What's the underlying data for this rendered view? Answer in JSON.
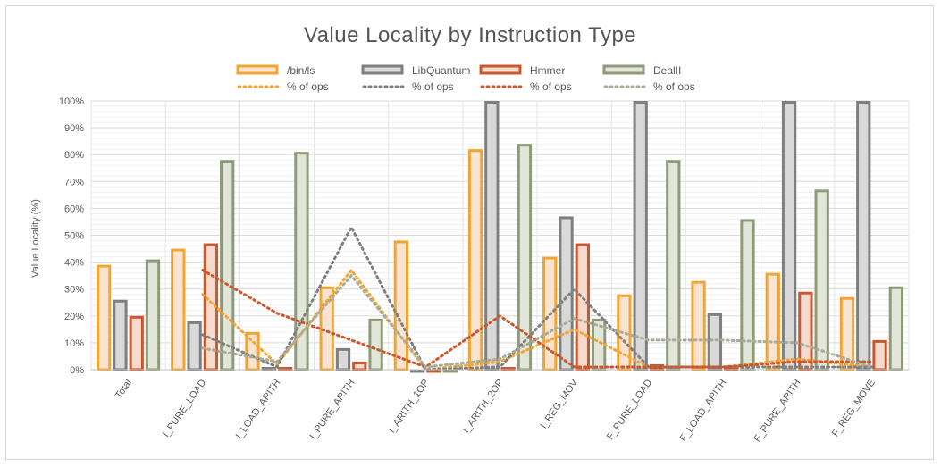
{
  "chart_data": {
    "type": "bar",
    "title": "Value Locality by Instruction Type",
    "ylabel": "Value Locality (%)",
    "xlabel": "",
    "ylim": [
      0,
      100
    ],
    "yticks": [
      "0%",
      "10%",
      "20%",
      "30%",
      "40%",
      "50%",
      "60%",
      "70%",
      "80%",
      "90%",
      "100%"
    ],
    "grid": true,
    "legend_position": "top",
    "categories": [
      "Total",
      "I_PURE_LOAD",
      "I_LOAD_ARITH",
      "I_PURE_ARITH",
      "I_ARITH_1OP",
      "I_ARITH_2OP",
      "I_REG_MOV",
      "F_PURE_LOAD",
      "F_LOAD_ARITH",
      "F_PURE_ARITH",
      "F_REG_MOVE"
    ],
    "series": [
      {
        "name": "/bin/ls",
        "stroke": "#f2a533",
        "fill": "#fbe4cf",
        "values": [
          39,
          45,
          14,
          31,
          48,
          82,
          42,
          28,
          33,
          36,
          27
        ]
      },
      {
        "name": "LibQuantum",
        "stroke": "#7f7f7f",
        "fill": "#d9d9d9",
        "values": [
          26,
          18,
          1,
          8,
          0,
          100,
          57,
          100,
          21,
          100,
          100
        ]
      },
      {
        "name": "Hmmer",
        "stroke": "#c8582d",
        "fill": "#f5dacd",
        "values": [
          20,
          47,
          1,
          3,
          0,
          1,
          47,
          2,
          1,
          29,
          11
        ]
      },
      {
        "name": "DealII",
        "stroke": "#8f9a7a",
        "fill": "#e2e6d8",
        "values": [
          41,
          78,
          81,
          19,
          0,
          84,
          19,
          78,
          56,
          67,
          31
        ]
      }
    ],
    "line_series": [
      {
        "name": "% of ops",
        "color": "#f2a533",
        "values": [
          null,
          28,
          2,
          37,
          0,
          3,
          15,
          1,
          1,
          4,
          1
        ]
      },
      {
        "name": "% of ops",
        "color": "#7f7f7f",
        "values": [
          null,
          13,
          1,
          53,
          0,
          1,
          30,
          1,
          1,
          1,
          1
        ]
      },
      {
        "name": "% of ops",
        "color": "#c8582d",
        "values": [
          null,
          37,
          21,
          11,
          1,
          20,
          1,
          1,
          1,
          3,
          3
        ]
      },
      {
        "name": "% of ops",
        "color": "#a8ac98",
        "values": [
          null,
          8,
          3,
          35,
          1,
          4,
          19,
          11,
          11,
          10,
          1
        ]
      }
    ]
  }
}
